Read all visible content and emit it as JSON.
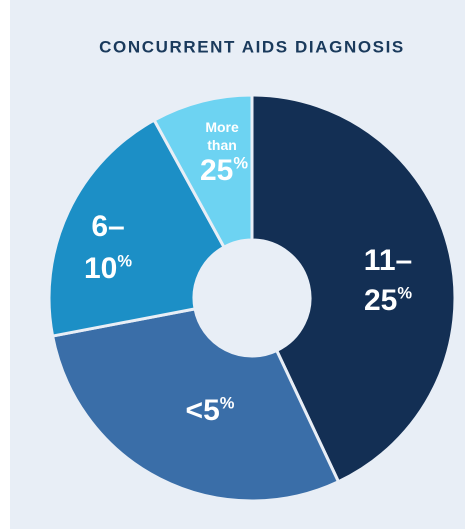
{
  "chart_data": {
    "type": "donut",
    "title": "CONCURRENT AIDS DIAGNOSIS",
    "categories": [
      "11–25%",
      "<5%",
      "6–10%",
      "More than 25%"
    ],
    "values": [
      43,
      29,
      20,
      8
    ],
    "colors": [
      "#132f54",
      "#3a6ea8",
      "#1c8fc6",
      "#6dd3f2"
    ]
  }
}
